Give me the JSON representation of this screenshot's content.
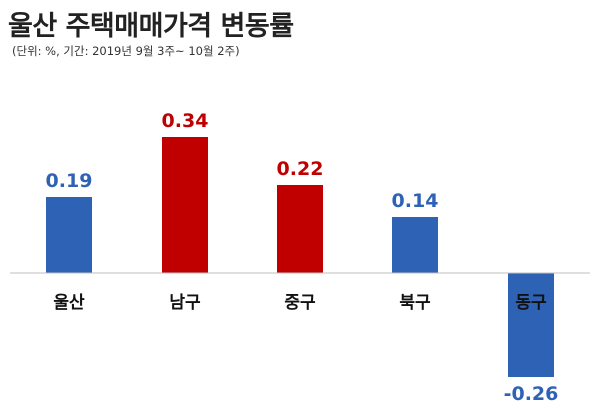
{
  "title": "울산 주택매매가격 변동률",
  "subtitle": "(단위: %, 기간: 2019년 9월 3주~ 10월 2주)",
  "colors": {
    "positive_blue": "#2e62b4",
    "positive_red": "#c00000",
    "baseline": "#bfbfbf",
    "category_text": "#111111"
  },
  "chart_data": {
    "type": "bar",
    "categories": [
      "울산",
      "남구",
      "중구",
      "북구",
      "동구"
    ],
    "values": [
      0.19,
      0.34,
      0.22,
      0.14,
      -0.26
    ],
    "value_labels": [
      "0.19",
      "0.34",
      "0.22",
      "0.14",
      "-0.26"
    ],
    "bar_colors": [
      "#2e62b4",
      "#c00000",
      "#c00000",
      "#2e62b4",
      "#2e62b4"
    ],
    "title": "울산 주택매매가격 변동률",
    "subtitle": "(단위: %, 기간: 2019년 9월 3주~ 10월 2주)",
    "xlabel": "",
    "ylabel": "",
    "ylim": [
      -0.26,
      0.34
    ],
    "grid": false,
    "legend": "none"
  }
}
